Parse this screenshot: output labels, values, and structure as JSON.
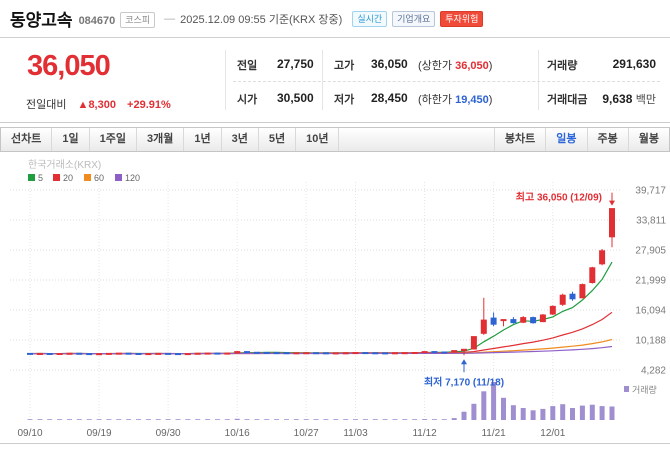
{
  "header": {
    "title": "동양고속",
    "code": "084670",
    "market_badge": "코스피",
    "separator": "—",
    "timestamp": "2025.12.09 09:55 기준(KRX 장중)",
    "badges": {
      "realtime": "실시간",
      "overview": "기업개요",
      "risk": "투자위험"
    }
  },
  "price": {
    "current": "36,050",
    "change_label": "전일대비",
    "change_arrow": "▲",
    "change_value": "8,300",
    "change_percent": "+29.91%",
    "prev_label": "전일",
    "prev_value": "27,750",
    "open_label": "시가",
    "open_value": "30,500",
    "high_label": "고가",
    "high_value": "36,050",
    "upper_limit_label": "상한가",
    "upper_limit_value": "36,050",
    "low_label": "저가",
    "low_value": "28,450",
    "lower_limit_label": "하한가",
    "lower_limit_value": "19,450",
    "volume_label": "거래량",
    "volume_value": "291,630",
    "amount_label": "거래대금",
    "amount_value": "9,638",
    "amount_unit": "백만",
    "lparen": "(",
    "rparen": ")"
  },
  "toolbar": {
    "left": [
      "선차트",
      "1일",
      "1주일",
      "3개월",
      "1년",
      "3년",
      "5년",
      "10년"
    ],
    "right": [
      "봉차트",
      "일봉",
      "주봉",
      "월봉"
    ],
    "selected": "일봉"
  },
  "chart_data": {
    "type": "candlestick+volume",
    "watermark": "한국거래소(KRX)",
    "legend": [
      {
        "label": "5",
        "color": "#1f9d3f"
      },
      {
        "label": "20",
        "color": "#e12f34"
      },
      {
        "label": "60",
        "color": "#f08c1e"
      },
      {
        "label": "120",
        "color": "#8f5fc8"
      }
    ],
    "ma_periods": [
      5,
      20,
      60,
      120
    ],
    "y_axis_labels": [
      39717,
      33811,
      27905,
      21999,
      16094,
      10188,
      4282
    ],
    "x_ticks": [
      {
        "i": 0,
        "label": "09/10"
      },
      {
        "i": 7,
        "label": "09/19"
      },
      {
        "i": 14,
        "label": "09/30"
      },
      {
        "i": 21,
        "label": "10/16"
      },
      {
        "i": 28,
        "label": "10/27"
      },
      {
        "i": 33,
        "label": "11/03"
      },
      {
        "i": 40,
        "label": "11/12"
      },
      {
        "i": 47,
        "label": "11/21"
      },
      {
        "i": 53,
        "label": "12/01"
      }
    ],
    "candles": [
      [
        7550,
        7600,
        7480,
        7520,
        8000
      ],
      [
        7520,
        7580,
        7470,
        7540,
        6000
      ],
      [
        7540,
        7560,
        7450,
        7480,
        5000
      ],
      [
        7480,
        7550,
        7440,
        7530,
        7000
      ],
      [
        7530,
        7600,
        7500,
        7560,
        6500
      ],
      [
        7560,
        7590,
        7490,
        7510,
        5500
      ],
      [
        7510,
        7540,
        7430,
        7460,
        5000
      ],
      [
        7460,
        7530,
        7420,
        7500,
        6000
      ],
      [
        7500,
        7570,
        7460,
        7550,
        7000
      ],
      [
        7550,
        7620,
        7510,
        7580,
        8000
      ],
      [
        7580,
        7610,
        7500,
        7530,
        6000
      ],
      [
        7530,
        7560,
        7450,
        7480,
        5000
      ],
      [
        7480,
        7540,
        7430,
        7510,
        5500
      ],
      [
        7510,
        7580,
        7470,
        7550,
        6000
      ],
      [
        7550,
        7600,
        7490,
        7520,
        6500
      ],
      [
        7520,
        7570,
        7460,
        7490,
        5000
      ],
      [
        7490,
        7550,
        7440,
        7520,
        5500
      ],
      [
        7520,
        7590,
        7480,
        7560,
        6000
      ],
      [
        7560,
        7630,
        7520,
        7600,
        7000
      ],
      [
        7600,
        7650,
        7530,
        7560,
        6000
      ],
      [
        7560,
        7640,
        7520,
        7610,
        8000
      ],
      [
        7610,
        7980,
        7580,
        7900,
        25000
      ],
      [
        7900,
        7950,
        7700,
        7760,
        15000
      ],
      [
        7760,
        7820,
        7680,
        7720,
        9000
      ],
      [
        7720,
        7780,
        7650,
        7700,
        7000
      ],
      [
        7700,
        7760,
        7630,
        7680,
        6000
      ],
      [
        7680,
        7730,
        7610,
        7650,
        5500
      ],
      [
        7650,
        7710,
        7600,
        7670,
        5000
      ],
      [
        7670,
        7720,
        7610,
        7690,
        6000
      ],
      [
        7690,
        7740,
        7630,
        7660,
        5500
      ],
      [
        7660,
        7700,
        7590,
        7620,
        5000
      ],
      [
        7620,
        7680,
        7570,
        7640,
        5500
      ],
      [
        7640,
        7700,
        7590,
        7670,
        6000
      ],
      [
        7670,
        7730,
        7620,
        7700,
        6500
      ],
      [
        7700,
        7750,
        7640,
        7670,
        5500
      ],
      [
        7670,
        7720,
        7610,
        7650,
        5000
      ],
      [
        7650,
        7700,
        7590,
        7630,
        5000
      ],
      [
        7630,
        7690,
        7580,
        7660,
        5500
      ],
      [
        7660,
        7720,
        7610,
        7690,
        6000
      ],
      [
        7690,
        7750,
        7640,
        7720,
        6500
      ],
      [
        7720,
        7950,
        7680,
        7900,
        20000
      ],
      [
        7900,
        7960,
        7780,
        7820,
        12000
      ],
      [
        7820,
        7880,
        7740,
        7790,
        9000
      ],
      [
        7790,
        8150,
        7730,
        8100,
        40000
      ],
      [
        8100,
        8400,
        7170,
        8350,
        180000
      ],
      [
        8400,
        10850,
        8300,
        10850,
        350000
      ],
      [
        11500,
        18500,
        11200,
        14100,
        620000
      ],
      [
        14500,
        15600,
        12900,
        13300,
        820000
      ],
      [
        14200,
        14250,
        12900,
        14200,
        480000
      ],
      [
        14200,
        14700,
        13400,
        13600,
        320000
      ],
      [
        13700,
        14900,
        13500,
        14600,
        260000
      ],
      [
        14600,
        14800,
        13400,
        13600,
        210000
      ],
      [
        13800,
        15300,
        13700,
        15100,
        240000
      ],
      [
        15300,
        17000,
        15100,
        16800,
        300000
      ],
      [
        17200,
        19300,
        16900,
        19000,
        340000
      ],
      [
        19200,
        19700,
        17900,
        18300,
        260000
      ],
      [
        18500,
        21300,
        18400,
        21100,
        310000
      ],
      [
        21500,
        24600,
        21300,
        24400,
        330000
      ],
      [
        25200,
        28100,
        24900,
        27750,
        300000
      ],
      [
        30500,
        36050,
        28450,
        36050,
        291630
      ]
    ],
    "annotations": {
      "high": {
        "text": "최고 36,050 (12/09)",
        "index": 59,
        "value": 36050
      },
      "low": {
        "text": "최저 7,170 (11/18)",
        "index": 44,
        "value": 7170
      }
    },
    "volume_axis_label": "거래량",
    "colors": {
      "up": "#e12f34",
      "down": "#2d63d2",
      "volume": "#9f8fd0",
      "grid": "#dddddd",
      "axis_text": "#7a7a7a"
    }
  }
}
